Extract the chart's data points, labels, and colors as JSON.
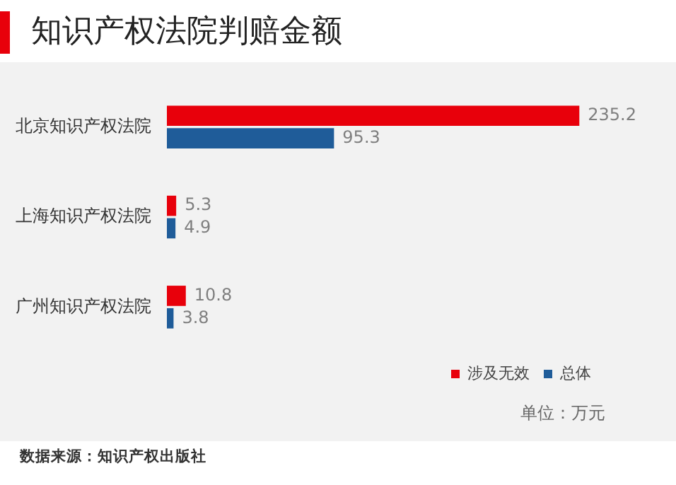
{
  "chart_data": {
    "type": "bar",
    "orientation": "horizontal",
    "title": "知识产权法院判赔金额",
    "categories": [
      "北京知识产权法院",
      "上海知识产权法院",
      "广州知识产权法院"
    ],
    "series": [
      {
        "name": "涉及无效",
        "color": "#e8000b",
        "values": [
          235.2,
          5.3,
          10.8
        ]
      },
      {
        "name": "总体",
        "color": "#1f5c99",
        "values": [
          95.3,
          4.9,
          3.8
        ]
      }
    ],
    "data_labels": true,
    "legend": "bottom right",
    "tick_labels": "y",
    "annotations": [
      "单位：万元",
      "数据来源：知识产权出版社"
    ]
  }
}
